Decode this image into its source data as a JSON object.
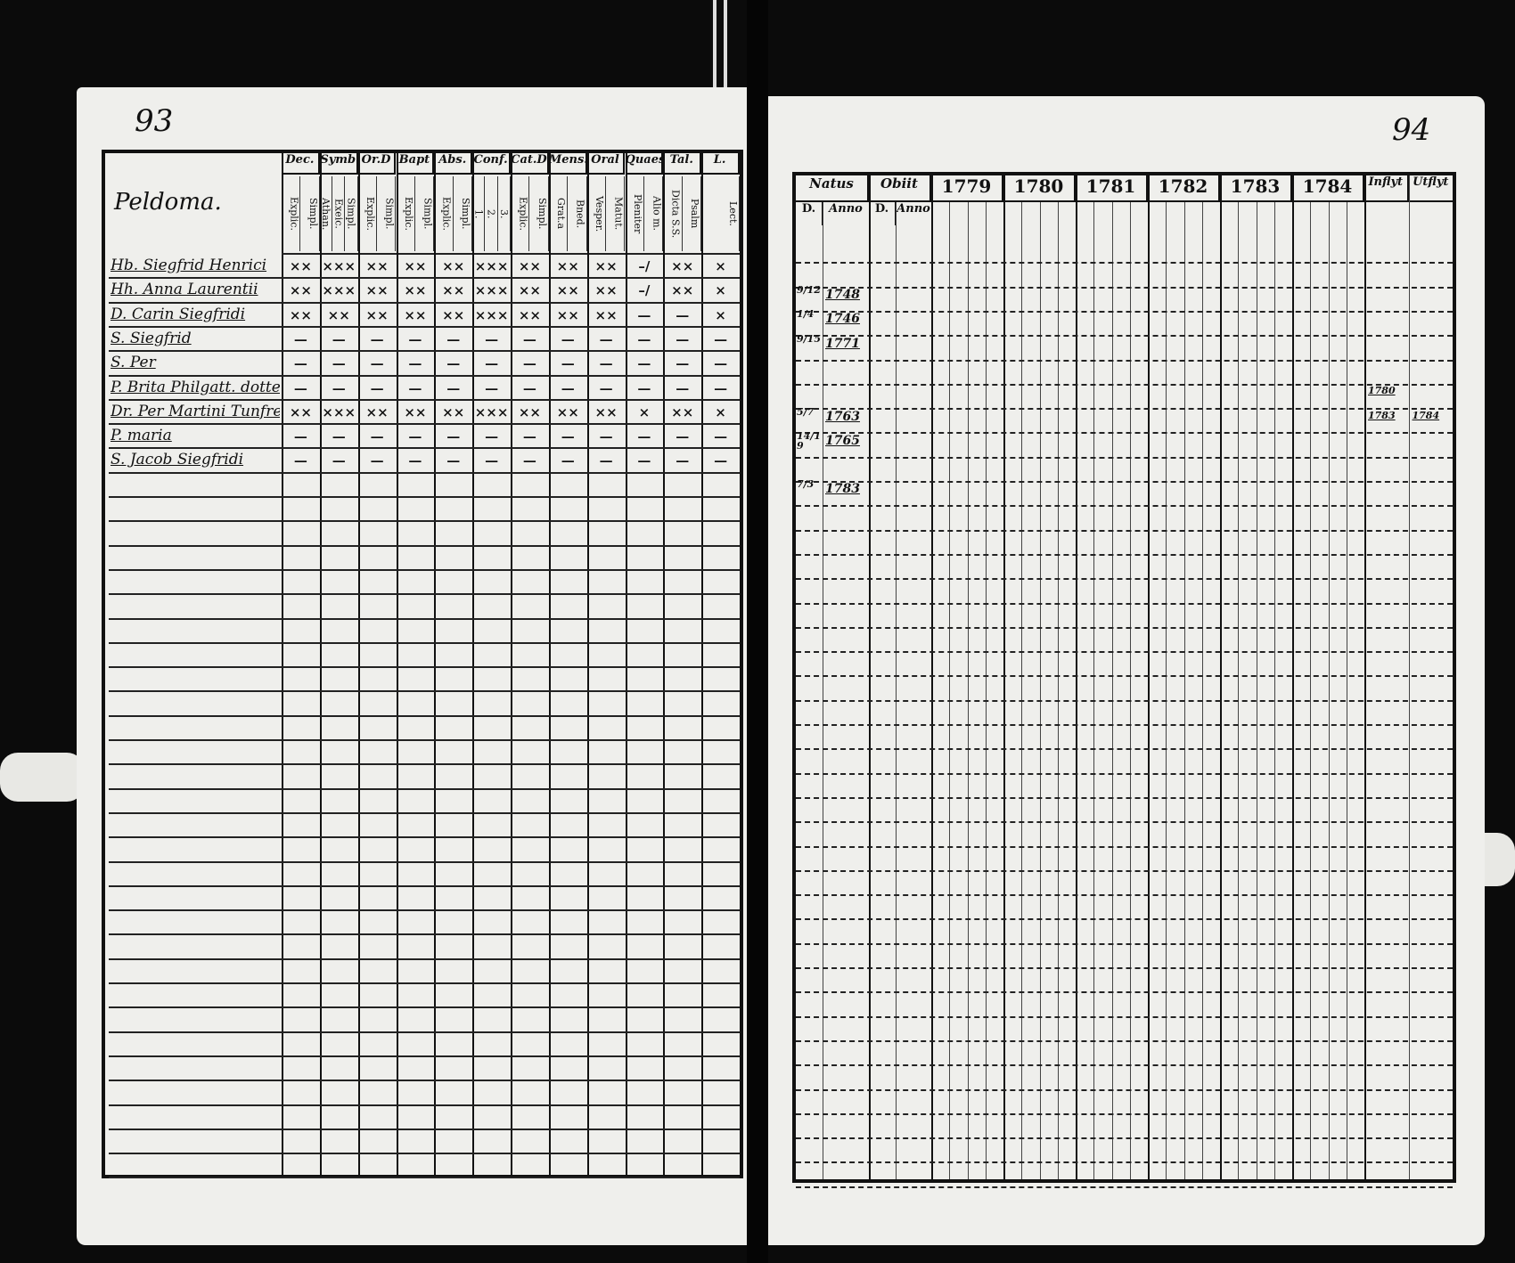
{
  "left_page": {
    "page_number": "93",
    "name_header": "Peldoma.",
    "columns": [
      {
        "label": "Dec.",
        "sub": [
          "Explic.",
          "Simpl."
        ]
      },
      {
        "label": "Symb",
        "sub": [
          "Athan.",
          "Exeic.",
          "Simpl."
        ]
      },
      {
        "label": "Or.D",
        "sub": [
          "Explic.",
          "Simpl."
        ]
      },
      {
        "label": "Bapt",
        "sub": [
          "Explic.",
          "Simpl."
        ]
      },
      {
        "label": "Abs.",
        "sub": [
          "Explic.",
          "Simpl."
        ]
      },
      {
        "label": "Conf.",
        "sub": [
          "1.",
          "2.",
          "3."
        ]
      },
      {
        "label": "Cat.D",
        "sub": [
          "Explic.",
          "Simpl."
        ]
      },
      {
        "label": "Mens.",
        "sub": [
          "Grat.a",
          "Bned."
        ]
      },
      {
        "label": "Oral",
        "sub": [
          "Vesper.",
          "Matut."
        ]
      },
      {
        "label": "Quaest.",
        "sub": [
          "Pleniter",
          "Alio m."
        ]
      },
      {
        "label": "Tal.",
        "sub": [
          "Dicta S.S.",
          "Psalm"
        ]
      },
      {
        "label": "L.",
        "sub": [
          "Lect."
        ]
      }
    ],
    "persons": [
      {
        "name": "Hb. Siegfrid Henrici",
        "marks": [
          "××",
          "×××",
          "××",
          "××",
          "××",
          "×××",
          "××",
          "××",
          "××",
          "–/",
          "××",
          "×"
        ]
      },
      {
        "name": "Hh. Anna Laurentii",
        "marks": [
          "××",
          "×××",
          "××",
          "××",
          "××",
          "×××",
          "××",
          "××",
          "××",
          "–/",
          "××",
          "×"
        ]
      },
      {
        "name": "D. Carin Siegfridi",
        "marks": [
          "××",
          "××",
          "××",
          "××",
          "××",
          "×××",
          "××",
          "××",
          "××",
          "—",
          "—",
          "×"
        ]
      },
      {
        "name": "S. Siegfrid",
        "marks": [
          "—",
          "—",
          "—",
          "—",
          "—",
          "—",
          "—",
          "—",
          "—",
          "—",
          "—",
          "—"
        ]
      },
      {
        "name": "S. Per",
        "marks": [
          "—",
          "—",
          "—",
          "—",
          "—",
          "—",
          "—",
          "—",
          "—",
          "—",
          "—",
          "—"
        ]
      },
      {
        "name": "P. Brita Philgatt. dotter",
        "marks": [
          "—",
          "—",
          "—",
          "—",
          "—",
          "—",
          "—",
          "—",
          "—",
          "—",
          "—",
          "—"
        ]
      },
      {
        "name": "Dr. Per Martini Tunfreld",
        "marks": [
          "××",
          "×××",
          "××",
          "××",
          "××",
          "×××",
          "××",
          "××",
          "××",
          "×",
          "××",
          "×"
        ]
      },
      {
        "name": "P. maria",
        "marks": [
          "—",
          "—",
          "—",
          "—",
          "—",
          "—",
          "—",
          "—",
          "—",
          "—",
          "—",
          "—"
        ]
      },
      {
        "name": "S. Jacob Siegfridi",
        "marks": [
          "—",
          "—",
          "—",
          "—",
          "—",
          "—",
          "—",
          "—",
          "—",
          "—",
          "—",
          "—"
        ]
      }
    ]
  },
  "right_page": {
    "page_number": "94",
    "natus": {
      "label": "Natus",
      "sub": [
        "D.",
        "Anno"
      ]
    },
    "obiit": {
      "label": "Obiit",
      "sub": [
        "D.",
        "Anno"
      ]
    },
    "years": [
      "1779",
      "1780",
      "1781",
      "1782",
      "1783",
      "1784"
    ],
    "moves": {
      "in": "Inflyt",
      "out": "Utflyt"
    },
    "entries": [
      {
        "day": "9/12",
        "year": "1748",
        "move_in": "",
        "move_out": ""
      },
      {
        "day": "1/4",
        "year": "1746",
        "move_in": "",
        "move_out": ""
      },
      {
        "day": "9/15",
        "year": "1771",
        "move_in": "",
        "move_out": ""
      },
      {
        "day": "",
        "year": "",
        "move_in": "",
        "move_out": ""
      },
      {
        "day": "",
        "year": "",
        "move_in": "1780",
        "move_out": ""
      },
      {
        "day": "5/7",
        "year": "1763",
        "move_in": "1783",
        "move_out": "1784"
      },
      {
        "day": "14/19",
        "year": "1765",
        "move_in": "",
        "move_out": ""
      },
      {
        "day": "",
        "year": "",
        "move_in": "",
        "move_out": ""
      },
      {
        "day": "7/3",
        "year": "1783",
        "move_in": "",
        "move_out": ""
      }
    ]
  }
}
